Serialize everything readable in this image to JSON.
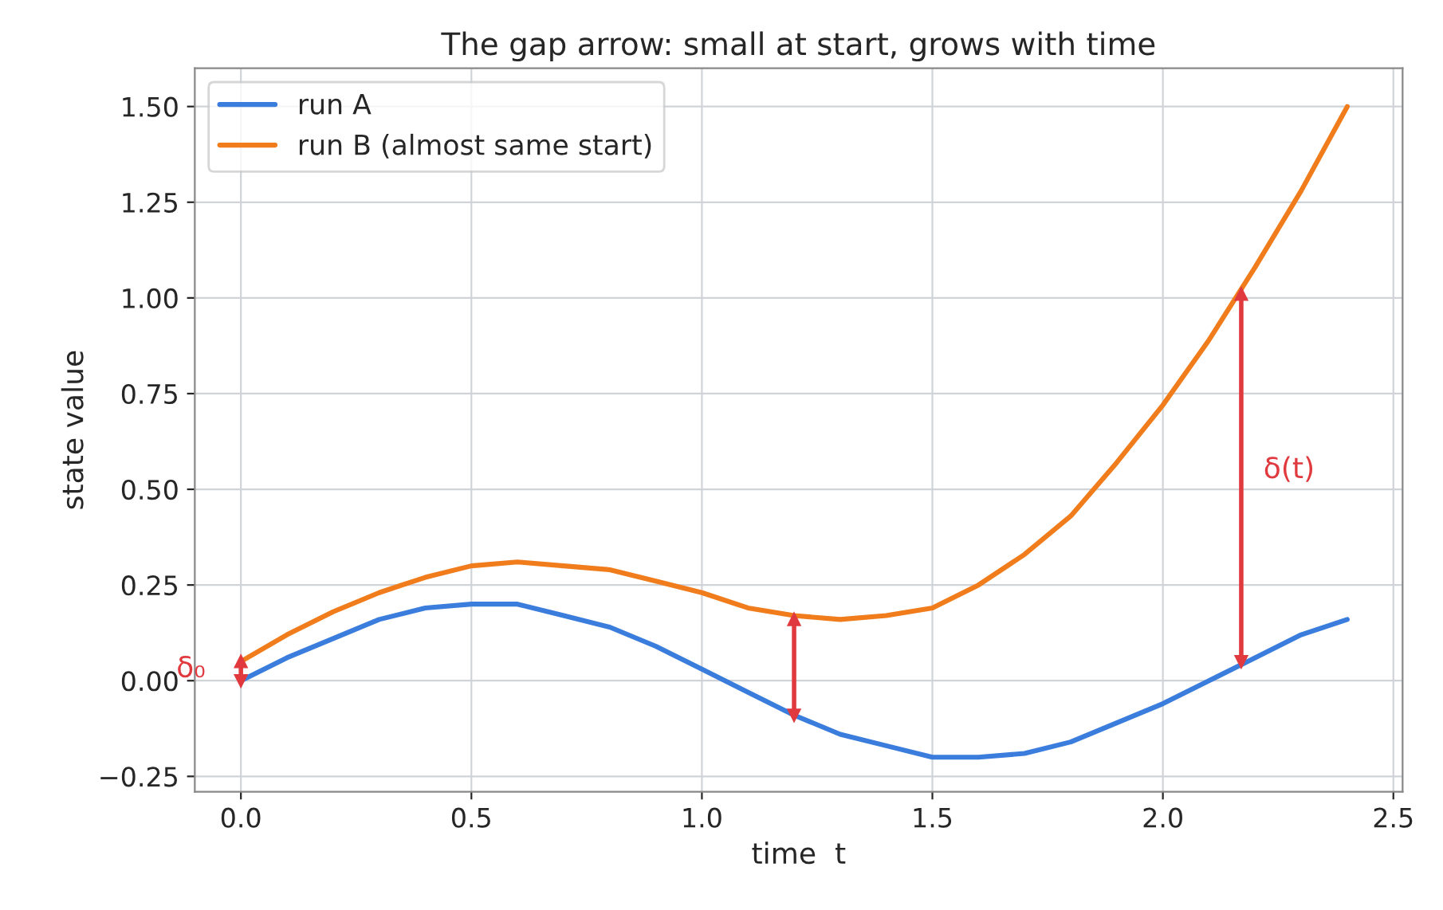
{
  "chart_data": {
    "type": "line",
    "title": "The gap arrow: small at start, grows with time",
    "xlabel": "time  t",
    "ylabel": "state value",
    "x": [
      0,
      0.1,
      0.2,
      0.3,
      0.4,
      0.5,
      0.6,
      0.7,
      0.8,
      0.9,
      1.0,
      1.1,
      1.2,
      1.3,
      1.4,
      1.5,
      1.6,
      1.7,
      1.8,
      1.9,
      2.0,
      2.1,
      2.2,
      2.3,
      2.4
    ],
    "series": [
      {
        "name": "run A",
        "color": "#3b7ddd",
        "values": [
          0,
          0.06,
          0.11,
          0.16,
          0.19,
          0.2,
          0.2,
          0.17,
          0.14,
          0.09,
          0.03,
          -0.03,
          -0.09,
          -0.14,
          -0.17,
          -0.2,
          -0.2,
          -0.19,
          -0.16,
          -0.11,
          -0.06,
          0.0,
          0.06,
          0.12,
          0.16
        ]
      },
      {
        "name": "run B (almost same start)",
        "color": "#f07c1c",
        "values": [
          0.05,
          0.12,
          0.18,
          0.23,
          0.27,
          0.3,
          0.31,
          0.3,
          0.29,
          0.26,
          0.23,
          0.19,
          0.17,
          0.16,
          0.17,
          0.19,
          0.25,
          0.33,
          0.43,
          0.57,
          0.72,
          0.89,
          1.08,
          1.28,
          1.5
        ]
      },
      {
        "type": "line",
        "marker": "triangle",
        "color": "#e0393e",
        "x": [
          0,
          0
        ],
        "values": [
          0,
          0.05
        ]
      },
      {
        "type": "line",
        "marker": "triangle",
        "color": "#e0393e",
        "x": [
          1.2,
          1.2
        ],
        "values": [
          -0.09,
          0.16
        ]
      },
      {
        "type": "line",
        "marker": "triangle",
        "color": "#e0393e",
        "x": [
          2.17,
          2.17
        ],
        "values": [
          0.05,
          1.01
        ]
      }
    ],
    "annotations": [
      {
        "text": "δ₀",
        "x": 0,
        "y": 0.03
      },
      {
        "text": "δ(t)",
        "x": 2.17,
        "y": 0.55
      }
    ],
    "xlim": [
      -0.1,
      2.52
    ],
    "ylim": [
      -0.29,
      1.6
    ],
    "xticks": [
      {
        "value": 0,
        "label": "0.0"
      },
      0.5,
      {
        "value": 1,
        "label": "1.0"
      },
      1.5,
      {
        "value": 2,
        "label": "2.0"
      },
      2.5
    ],
    "yticks": [
      {
        "value": -0.25,
        "label": "−0.25"
      },
      {
        "value": 0,
        "label": "0.00"
      },
      0.25,
      {
        "value": 0.5,
        "label": "0.50"
      },
      0.75,
      {
        "value": 1,
        "label": "1.00"
      },
      1.25,
      {
        "value": 1.5,
        "label": "1.50"
      }
    ],
    "grid": true,
    "legend": "top left",
    "line_style": "solid",
    "marker": "none"
  }
}
